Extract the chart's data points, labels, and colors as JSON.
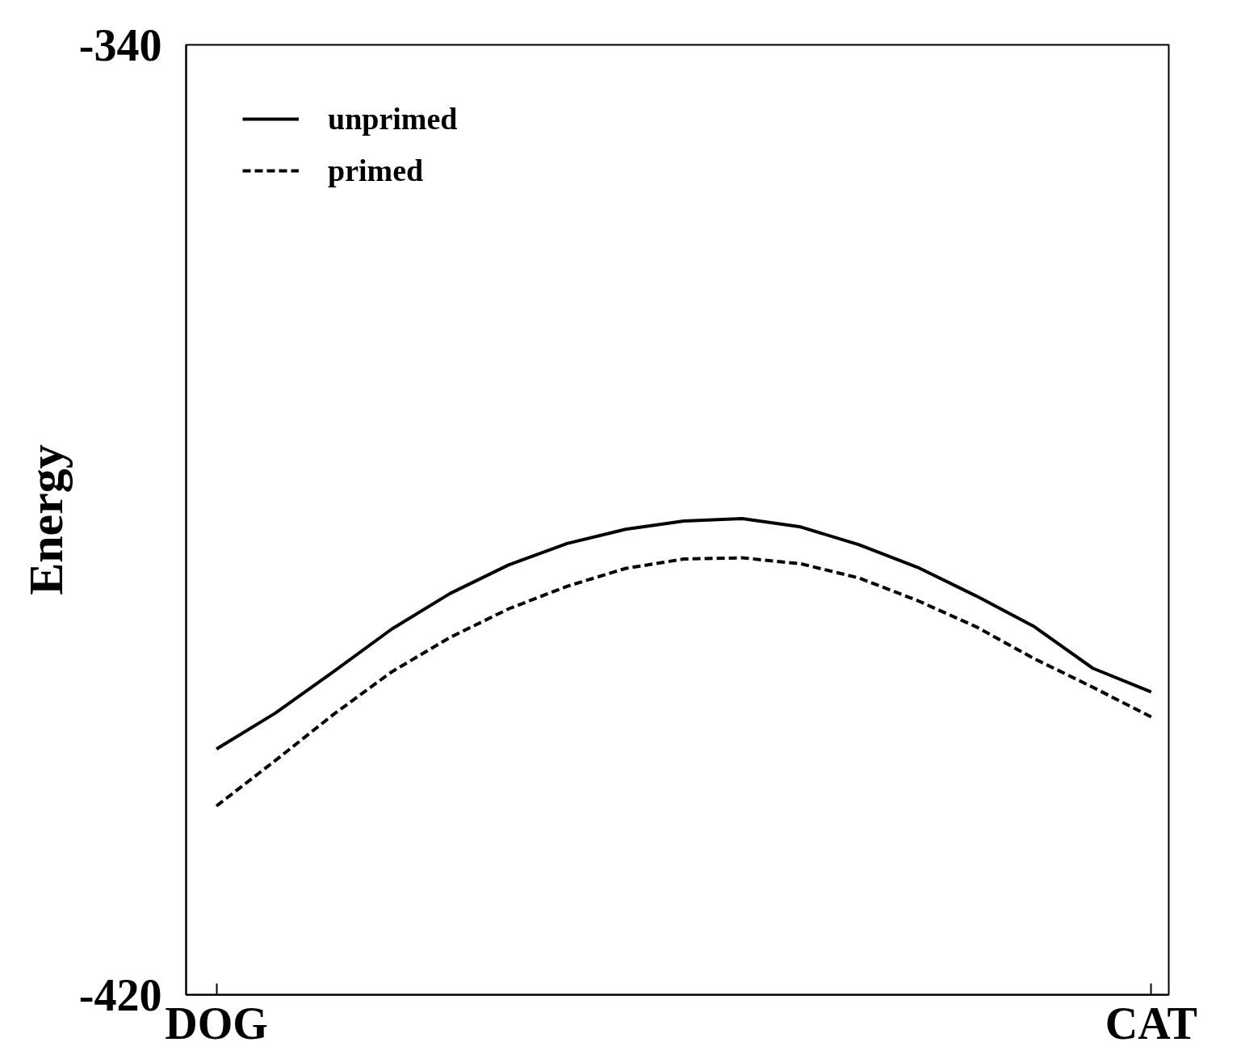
{
  "chart_data": {
    "type": "line",
    "ylabel": "Energy",
    "ylim": [
      -420,
      -340
    ],
    "categories": [
      "DOG",
      null,
      null,
      null,
      null,
      null,
      null,
      null,
      null,
      null,
      null,
      null,
      null,
      null,
      null,
      null,
      "CAT"
    ],
    "yticks": [
      -340,
      -420
    ],
    "grid": false,
    "legend": "top left",
    "series": [
      {
        "name": "unprimed",
        "color": "#000000",
        "line_style": "solid",
        "values": [
          -399.3,
          -396.3,
          -392.8,
          -389.2,
          -386.2,
          -383.8,
          -382.0,
          -380.8,
          -380.1,
          -379.9,
          -380.6,
          -382.1,
          -384.0,
          -386.4,
          -389.0,
          -392.5,
          -394.5
        ]
      },
      {
        "name": "primed",
        "color": "#000000",
        "line_style": "dashed",
        "values": [
          -404.1,
          -400.3,
          -396.4,
          -392.8,
          -389.9,
          -387.5,
          -385.6,
          -384.1,
          -383.3,
          -383.2,
          -383.7,
          -384.9,
          -386.8,
          -389.0,
          -391.7,
          -394.1,
          -396.6
        ]
      }
    ]
  }
}
